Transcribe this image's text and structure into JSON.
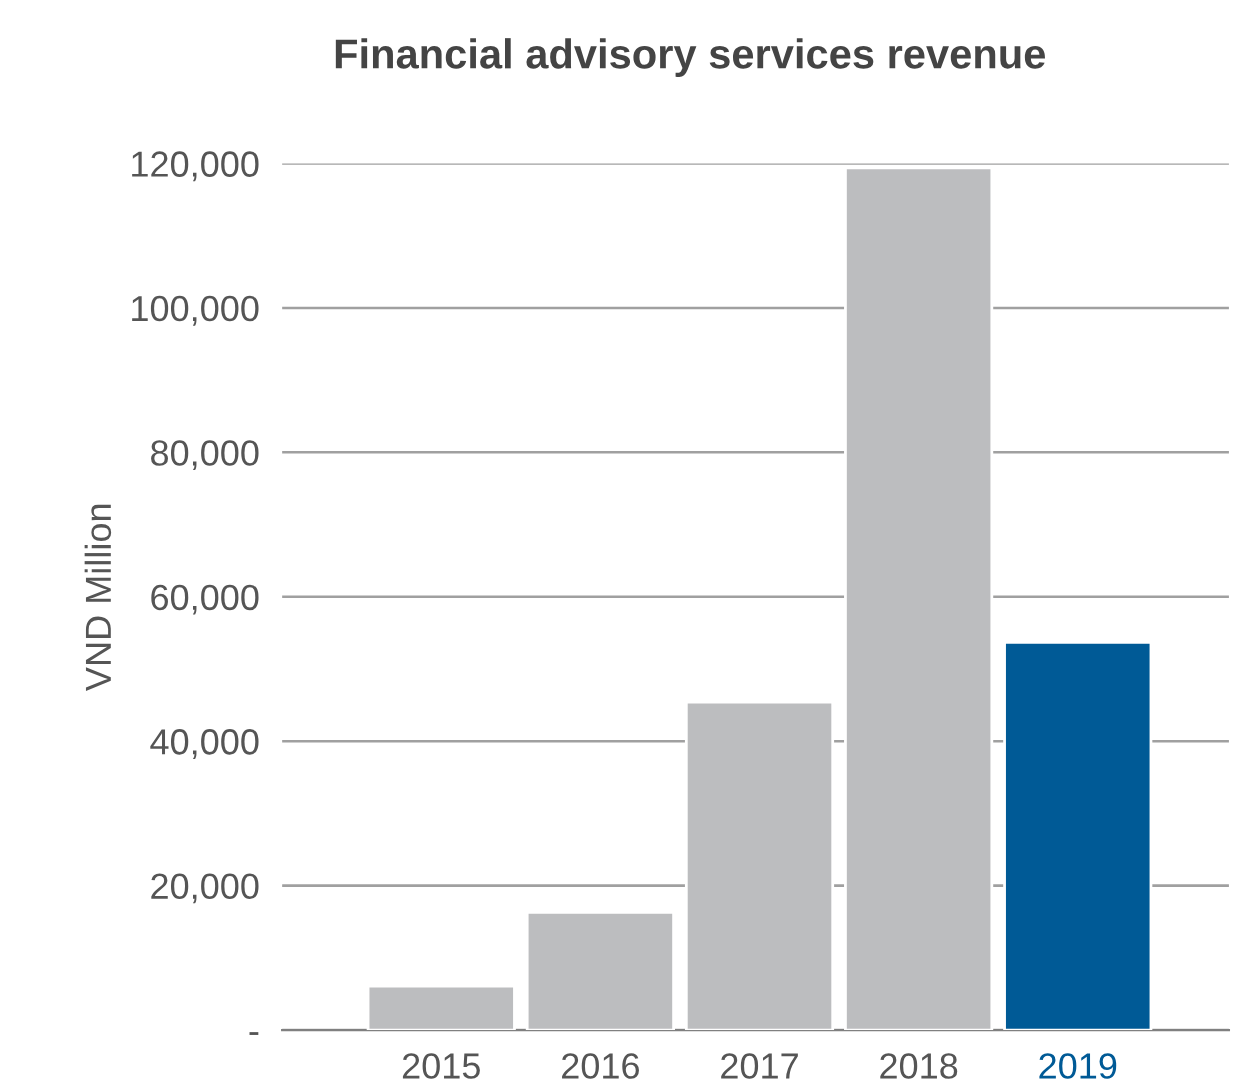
{
  "chart_data": {
    "type": "bar",
    "title": "Financial advisory services revenue",
    "ylabel": "VND Million",
    "categories": [
      "2015",
      "2016",
      "2017",
      "2018",
      "2019"
    ],
    "values": [
      6100,
      16300,
      45400,
      119400,
      53700
    ],
    "colors": [
      "#bcbdbf",
      "#bcbdbf",
      "#bcbdbf",
      "#bcbdbf",
      "#005a96"
    ],
    "ylim": [
      0,
      120000
    ],
    "yticks": [
      {
        "value": 0,
        "label": "-"
      },
      {
        "value": 20000,
        "label": "20,000"
      },
      {
        "value": 40000,
        "label": "40,000"
      },
      {
        "value": 60000,
        "label": "60,000"
      },
      {
        "value": 80000,
        "label": "80,000"
      },
      {
        "value": 100000,
        "label": "100,000"
      },
      {
        "value": 120000,
        "label": "120,000"
      }
    ],
    "grid": "y",
    "legend": false
  }
}
